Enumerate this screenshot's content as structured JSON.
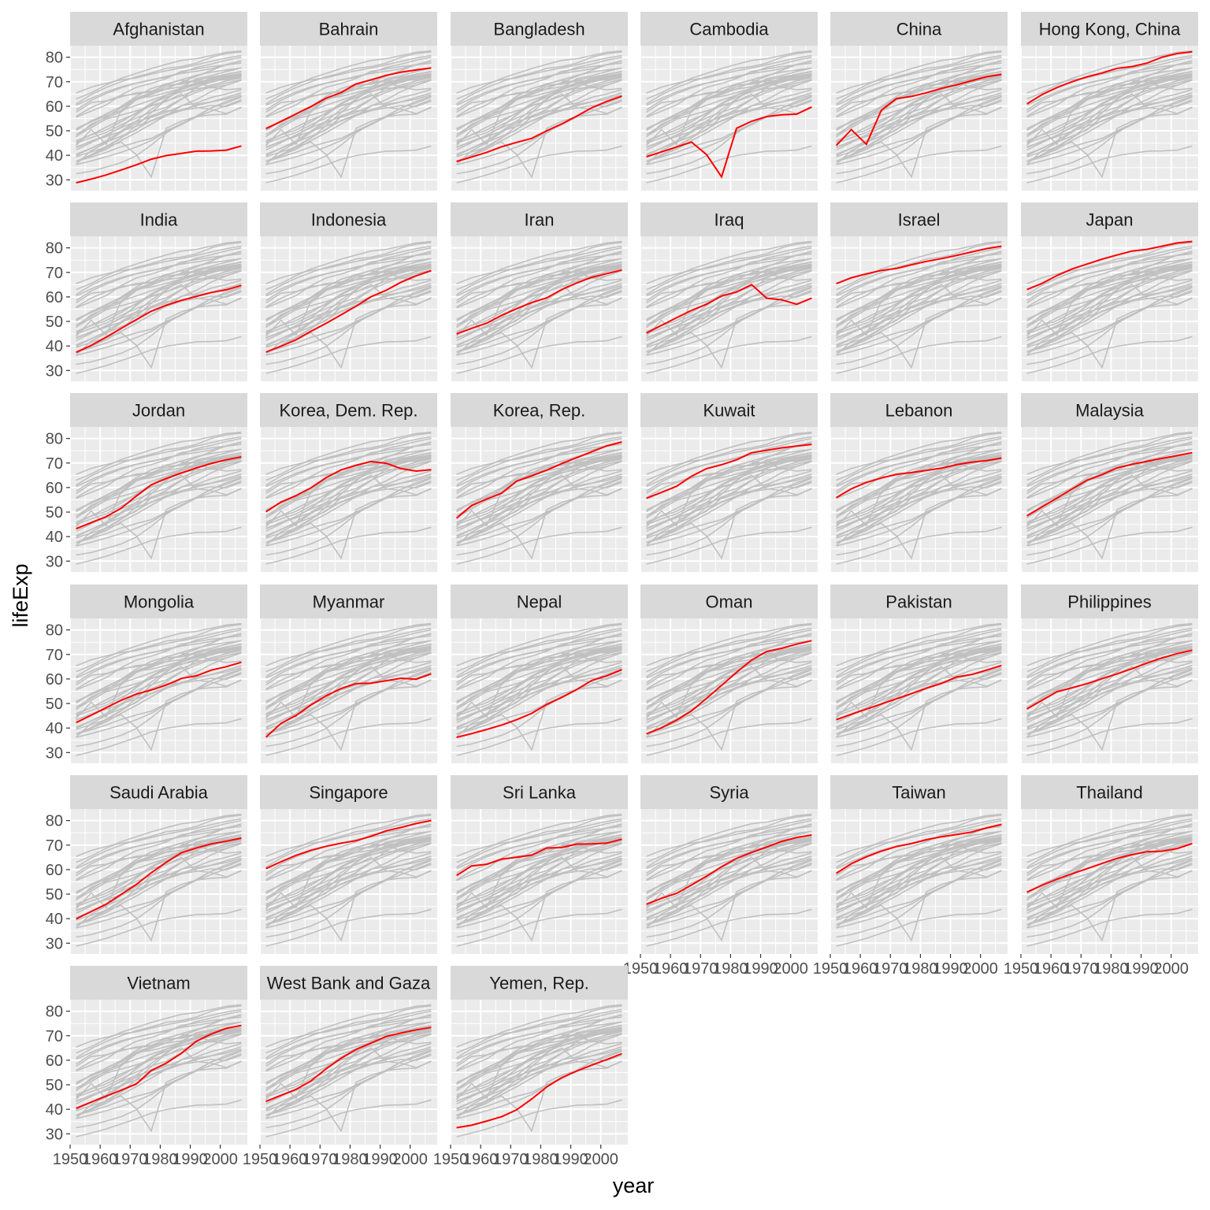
{
  "chart_data": {
    "type": "line",
    "facet": "small-multiples",
    "xlabel": "year",
    "ylabel": "lifeExp",
    "xlim": [
      1950,
      2009
    ],
    "ylim": [
      25.6,
      84.7
    ],
    "x_ticks": [
      1950,
      1960,
      1970,
      1980,
      1990,
      2000
    ],
    "x_tick_labels": [
      "1950",
      "1960",
      "1970",
      "1980",
      "1990",
      "2000"
    ],
    "y_ticks": [
      30,
      40,
      50,
      60,
      70,
      80
    ],
    "y_tick_labels": [
      "30",
      "40",
      "50",
      "60",
      "70",
      "80"
    ],
    "highlight_color": "#ff0000",
    "background_color": "#c0c0c0",
    "panel_color": "#ebebeb",
    "strip_color": "#d9d9d9",
    "x": [
      1952,
      1957,
      1962,
      1967,
      1972,
      1977,
      1982,
      1987,
      1992,
      1997,
      2002,
      2007
    ],
    "series": [
      {
        "name": "Afghanistan",
        "values": [
          28.8,
          30.3,
          32.0,
          34.0,
          36.1,
          38.4,
          39.9,
          40.8,
          41.7,
          41.8,
          42.1,
          43.8
        ]
      },
      {
        "name": "Bahrain",
        "values": [
          50.9,
          53.8,
          56.9,
          59.9,
          63.3,
          65.6,
          69.1,
          70.8,
          72.6,
          73.9,
          74.8,
          75.6
        ]
      },
      {
        "name": "Bangladesh",
        "values": [
          37.5,
          39.3,
          41.2,
          43.5,
          45.3,
          46.9,
          50.0,
          52.8,
          56.0,
          59.4,
          62.0,
          64.1
        ]
      },
      {
        "name": "Cambodia",
        "values": [
          39.4,
          41.4,
          43.4,
          45.4,
          40.3,
          31.2,
          51.0,
          53.9,
          55.8,
          56.5,
          56.8,
          59.7
        ]
      },
      {
        "name": "China",
        "values": [
          44.0,
          50.5,
          44.5,
          58.4,
          63.1,
          64.0,
          65.5,
          67.3,
          68.7,
          70.4,
          72.0,
          73.0
        ]
      },
      {
        "name": "Hong Kong, China",
        "values": [
          60.96,
          64.75,
          67.65,
          70.0,
          72.0,
          73.6,
          75.45,
          76.2,
          77.6,
          80.0,
          81.5,
          82.2
        ]
      },
      {
        "name": "India",
        "values": [
          37.4,
          40.2,
          43.6,
          47.2,
          50.7,
          54.2,
          56.6,
          58.6,
          60.2,
          61.8,
          62.9,
          64.7
        ]
      },
      {
        "name": "Indonesia",
        "values": [
          37.5,
          39.9,
          42.5,
          46.0,
          49.2,
          52.7,
          56.2,
          60.1,
          62.7,
          66.0,
          68.6,
          70.7
        ]
      },
      {
        "name": "Iran",
        "values": [
          44.9,
          47.2,
          49.3,
          52.5,
          55.2,
          57.7,
          59.6,
          63.0,
          65.7,
          68.0,
          69.5,
          71.0
        ]
      },
      {
        "name": "Iraq",
        "values": [
          45.3,
          48.4,
          51.5,
          54.5,
          57.0,
          60.4,
          62.0,
          65.0,
          59.5,
          58.8,
          57.0,
          59.5
        ]
      },
      {
        "name": "Israel",
        "values": [
          65.4,
          67.8,
          69.4,
          70.8,
          71.6,
          73.1,
          74.5,
          75.6,
          76.9,
          78.3,
          79.7,
          80.7
        ]
      },
      {
        "name": "Japan",
        "values": [
          63.0,
          65.5,
          68.7,
          71.4,
          73.4,
          75.4,
          77.1,
          78.7,
          79.4,
          80.7,
          82.0,
          82.6
        ]
      },
      {
        "name": "Jordan",
        "values": [
          43.2,
          45.7,
          48.1,
          51.6,
          56.5,
          61.1,
          63.7,
          65.9,
          68.0,
          69.8,
          71.3,
          72.5
        ]
      },
      {
        "name": "Korea, Dem. Rep.",
        "values": [
          50.1,
          54.1,
          56.7,
          59.9,
          64.0,
          67.2,
          69.1,
          70.6,
          69.9,
          67.7,
          66.7,
          67.3
        ]
      },
      {
        "name": "Korea, Rep.",
        "values": [
          47.5,
          52.7,
          55.3,
          57.7,
          62.6,
          64.8,
          67.1,
          69.8,
          72.2,
          74.6,
          77.0,
          78.6
        ]
      },
      {
        "name": "Kuwait",
        "values": [
          55.6,
          58.0,
          60.5,
          64.6,
          67.7,
          69.3,
          71.3,
          74.2,
          75.2,
          76.2,
          76.9,
          77.6
        ]
      },
      {
        "name": "Lebanon",
        "values": [
          55.9,
          59.5,
          62.1,
          63.9,
          65.4,
          66.1,
          67.0,
          67.9,
          69.3,
          70.3,
          71.0,
          72.0
        ]
      },
      {
        "name": "Malaysia",
        "values": [
          48.5,
          52.1,
          55.7,
          59.4,
          63.0,
          65.3,
          68.0,
          69.5,
          70.7,
          71.9,
          73.0,
          74.2
        ]
      },
      {
        "name": "Mongolia",
        "values": [
          42.2,
          45.2,
          48.3,
          51.3,
          53.8,
          55.5,
          57.5,
          60.2,
          61.3,
          63.6,
          65.0,
          66.8
        ]
      },
      {
        "name": "Myanmar",
        "values": [
          36.3,
          41.9,
          45.1,
          49.4,
          53.1,
          56.1,
          58.1,
          58.3,
          59.3,
          60.3,
          59.9,
          62.1
        ]
      },
      {
        "name": "Nepal",
        "values": [
          36.2,
          37.7,
          39.4,
          41.2,
          43.4,
          46.0,
          49.6,
          52.5,
          55.7,
          59.4,
          61.3,
          63.8
        ]
      },
      {
        "name": "Oman",
        "values": [
          37.6,
          40.1,
          43.2,
          47.0,
          52.1,
          57.4,
          62.7,
          67.7,
          71.2,
          72.5,
          74.2,
          75.6
        ]
      },
      {
        "name": "Pakistan",
        "values": [
          43.4,
          45.6,
          47.7,
          49.8,
          51.9,
          54.0,
          56.2,
          58.2,
          60.8,
          61.8,
          63.6,
          65.5
        ]
      },
      {
        "name": "Philippines",
        "values": [
          47.8,
          51.3,
          54.8,
          56.4,
          58.1,
          60.1,
          62.1,
          64.2,
          66.5,
          68.6,
          70.3,
          71.7
        ]
      },
      {
        "name": "Saudi Arabia",
        "values": [
          39.9,
          42.9,
          45.9,
          49.9,
          53.9,
          58.7,
          63.0,
          66.8,
          68.8,
          70.5,
          71.6,
          72.8
        ]
      },
      {
        "name": "Singapore",
        "values": [
          60.4,
          63.2,
          65.8,
          67.9,
          69.5,
          70.8,
          71.8,
          73.6,
          75.8,
          77.2,
          78.8,
          80.0
        ]
      },
      {
        "name": "Sri Lanka",
        "values": [
          57.6,
          61.5,
          62.2,
          64.3,
          65.0,
          65.9,
          68.8,
          69.0,
          70.4,
          70.5,
          70.8,
          72.4
        ]
      },
      {
        "name": "Syria",
        "values": [
          45.9,
          48.3,
          50.3,
          53.7,
          57.3,
          61.2,
          64.6,
          67.0,
          69.2,
          71.5,
          73.1,
          74.1
        ]
      },
      {
        "name": "Taiwan",
        "values": [
          58.5,
          62.4,
          65.2,
          67.5,
          69.4,
          70.6,
          72.2,
          73.4,
          74.3,
          75.3,
          76.99,
          78.4
        ]
      },
      {
        "name": "Thailand",
        "values": [
          50.8,
          53.6,
          56.1,
          58.3,
          60.4,
          62.5,
          64.6,
          66.1,
          67.3,
          67.5,
          68.6,
          70.6
        ]
      },
      {
        "name": "Vietnam",
        "values": [
          40.4,
          42.9,
          45.4,
          47.8,
          50.3,
          55.8,
          58.8,
          62.8,
          67.7,
          70.7,
          73.0,
          74.2
        ]
      },
      {
        "name": "West Bank and Gaza",
        "values": [
          43.2,
          45.7,
          48.1,
          51.6,
          56.5,
          60.8,
          64.4,
          67.0,
          69.7,
          71.1,
          72.4,
          73.4
        ]
      },
      {
        "name": "Yemen, Rep.",
        "values": [
          32.5,
          33.5,
          35.2,
          37.0,
          39.8,
          44.2,
          49.1,
          52.9,
          55.6,
          58.0,
          60.3,
          62.7
        ]
      }
    ]
  }
}
